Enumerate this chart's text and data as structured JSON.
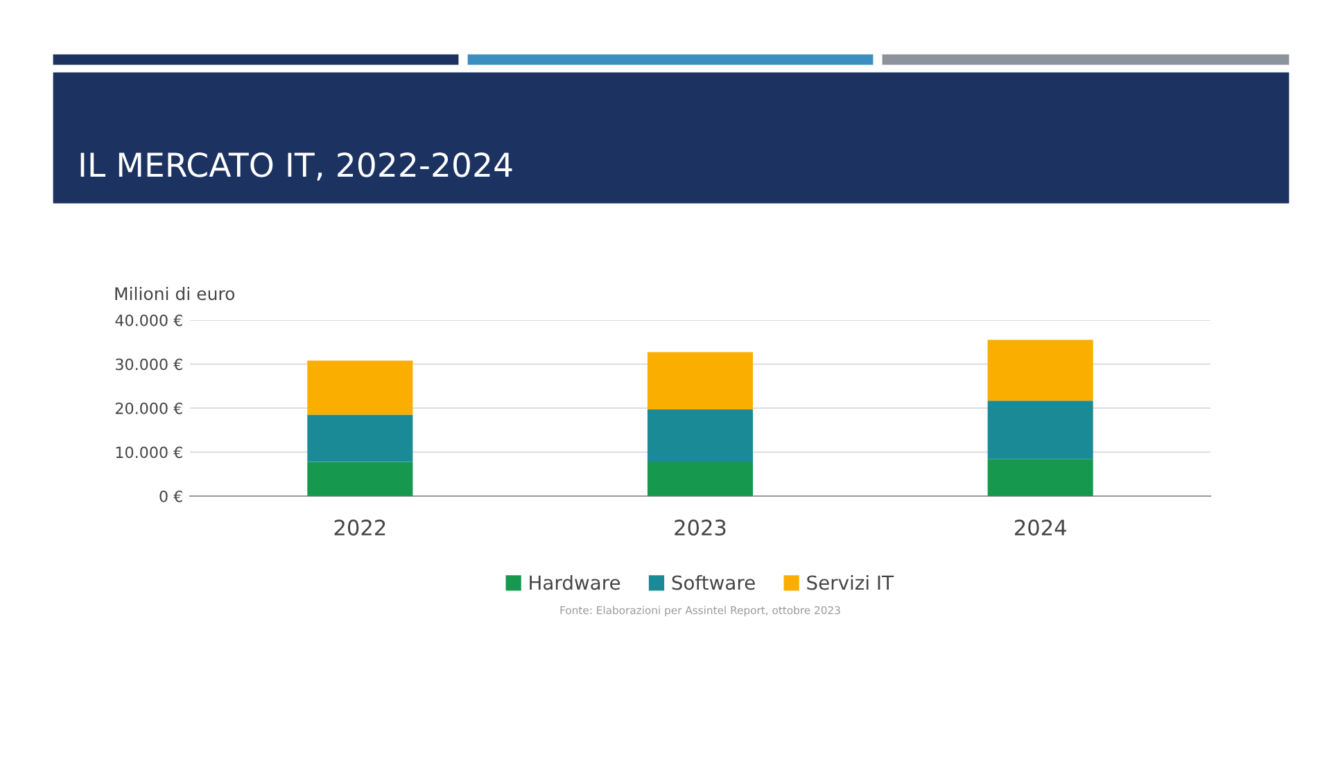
{
  "chart_data": {
    "type": "bar",
    "title": "IL MERCATO IT, 2022-2024",
    "ylabel": "Milioni di euro",
    "categories": [
      "2022",
      "2023",
      "2024"
    ],
    "stacked": true,
    "series": [
      {
        "name": "Hardware",
        "color": "#16994f",
        "values": [
          7800,
          7700,
          8400
        ]
      },
      {
        "name": "Software",
        "color": "#1a8b96",
        "values": [
          10700,
          12000,
          13300
        ]
      },
      {
        "name": "Servizi IT",
        "color": "#f9ae00",
        "values": [
          12300,
          13000,
          13800
        ]
      }
    ],
    "ylim": [
      0,
      40000
    ],
    "yticks": [
      {
        "value": 0,
        "label": "0 €"
      },
      {
        "value": 10000,
        "label": "10.000 €"
      },
      {
        "value": 20000,
        "label": "20.000 €"
      },
      {
        "value": 30000,
        "label": "30.000 €"
      },
      {
        "value": 40000,
        "label": "40.000 €"
      }
    ],
    "grid": "y",
    "legend": "bottom",
    "annotations": [
      "Fonte: Elaborazioni per Assintel Report, ottobre 2023"
    ]
  }
}
